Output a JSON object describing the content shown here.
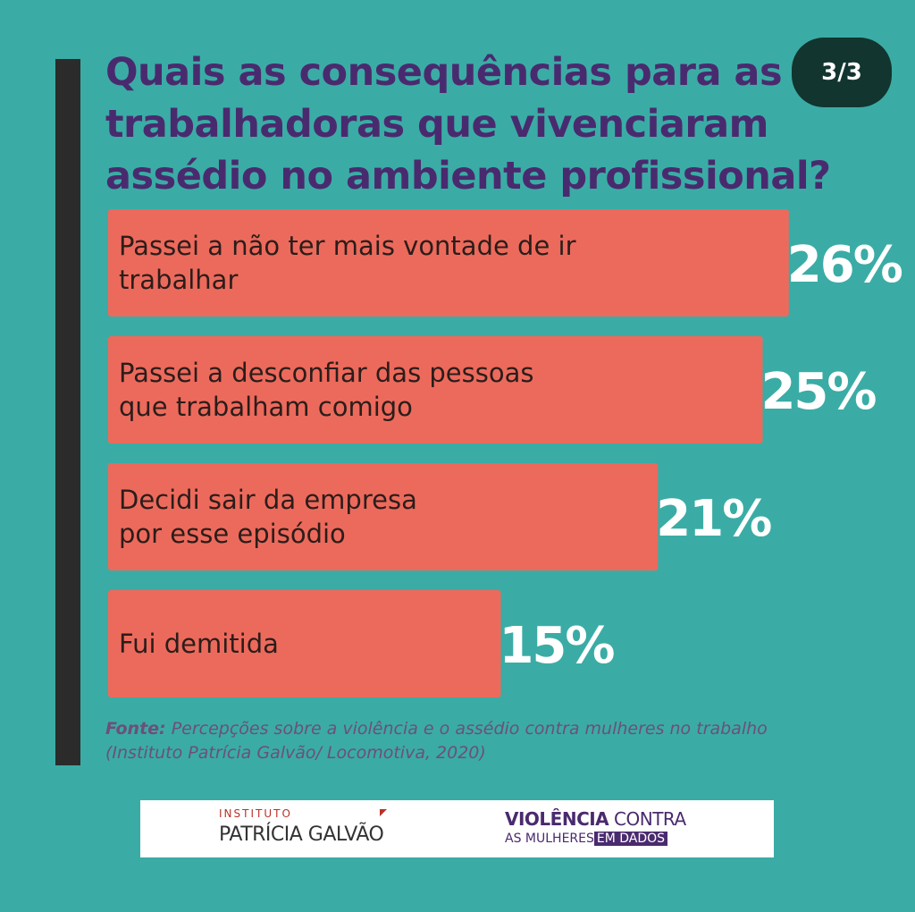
{
  "title": "Quais as consequências para as trabalhadoras que vivenciaram assédio no ambiente profissional?",
  "page_indicator": "3/3",
  "colors": {
    "background": "#3aaca5",
    "bar": "#ec6a5c",
    "title": "#4a2a6e",
    "value_text": "#ffffff",
    "left_accent": "#2b2b2b"
  },
  "chart_data": {
    "type": "bar",
    "orientation": "horizontal",
    "categories": [
      "Passei a não ter mais vontade de ir trabalhar",
      "Passei a desconfiar das pessoas que trabalham comigo",
      "Decidi sair da empresa por esse episódio",
      "Fui demitida"
    ],
    "label_lines": [
      [
        "Passei a não ter mais vontade de ir",
        "trabalhar"
      ],
      [
        "Passei a desconfiar das pessoas",
        "que trabalham comigo"
      ],
      [
        "Decidi sair da empresa",
        "por esse episódio"
      ],
      [
        "Fui demitida"
      ]
    ],
    "values": [
      26,
      25,
      21,
      15
    ],
    "value_labels": [
      "26%",
      "25%",
      "21%",
      "15%"
    ],
    "unit": "%",
    "grid": false,
    "legend": "none"
  },
  "source": {
    "label": "Fonte:",
    "text": "Percepções sobre a violência e o assédio contra mulheres no trabalho (Instituto Patrícia Galvão/ Locomotiva, 2020)"
  },
  "logos": {
    "ipg_top": "INSTITUTO",
    "ipg_bottom": "PATRÍCIA GALVÃO",
    "vcm_strong": "VIOLÊNCIA",
    "vcm_rest": " CONTRA",
    "vcm_line2": "AS MULHERES",
    "vcm_tag": "EM DADOS"
  }
}
